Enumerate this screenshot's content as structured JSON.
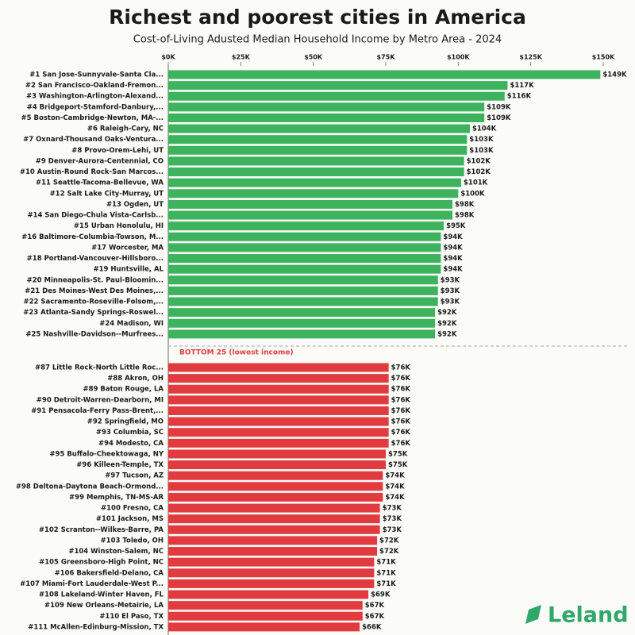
{
  "chart_data": {
    "type": "bar",
    "title": "Richest and poorest cities in America",
    "subtitle": "Cost-of-Living Adusted Median Household Income by Metro Area - 2024",
    "xlim": [
      0,
      150
    ],
    "xticks": [
      {
        "value": 0,
        "label": "$0K"
      },
      {
        "value": 25,
        "label": "$25K"
      },
      {
        "value": 50,
        "label": "$50K"
      },
      {
        "value": 75,
        "label": "$75K"
      },
      {
        "value": 100,
        "label": "$100K"
      },
      {
        "value": 125,
        "label": "$125K"
      },
      {
        "value": 150,
        "label": "$150K"
      }
    ],
    "groups": [
      {
        "color": "#3cb35c",
        "categories": [
          "#1 San Jose-Sunnyvale-Santa Cla...",
          "#2 San Francisco-Oakland-Fremon...",
          "#3 Washington-Arlington-Alexand...",
          "#4 Bridgeport-Stamford-Danbury,...",
          "#5 Boston-Cambridge-Newton, MA-...",
          "#6 Raleigh-Cary, NC",
          "#7 Oxnard-Thousand Oaks-Ventura...",
          "#8 Provo-Orem-Lehi, UT",
          "#9 Denver-Aurora-Centennial, CO",
          "#10 Austin-Round Rock-San Marcos...",
          "#11 Seattle-Tacoma-Bellevue, WA",
          "#12 Salt Lake City-Murray, UT",
          "#13 Ogden, UT",
          "#14 San Diego-Chula Vista-Carlsb...",
          "#15 Urban Honolulu, HI",
          "#16 Baltimore-Columbia-Towson, M...",
          "#17 Worcester, MA",
          "#18 Portland-Vancouver-Hillsboro...",
          "#19 Huntsville, AL",
          "#20 Minneapolis-St. Paul-Bloomin...",
          "#21 Des Moines-West Des Moines,...",
          "#22 Sacramento-Roseville-Folsom,...",
          "#23 Atlanta-Sandy Springs-Roswel...",
          "#24 Madison, WI",
          "#25 Nashville-Davidson--Murfrees..."
        ],
        "values": [
          149,
          117,
          116,
          109,
          109,
          104,
          103,
          103,
          102,
          102,
          101,
          100,
          98,
          98,
          95,
          94,
          94,
          94,
          94,
          93,
          93,
          93,
          92,
          92,
          92
        ],
        "value_labels": [
          "$149K",
          "$117K",
          "$116K",
          "$109K",
          "$109K",
          "$104K",
          "$103K",
          "$103K",
          "$102K",
          "$102K",
          "$101K",
          "$100K",
          "$98K",
          "$98K",
          "$95K",
          "$94K",
          "$94K",
          "$94K",
          "$94K",
          "$93K",
          "$93K",
          "$93K",
          "$92K",
          "$92K",
          "$92K"
        ]
      },
      {
        "name": "BOTTOM 25 (lowest income)",
        "color": "#e23b3f",
        "categories": [
          "#87 Little Rock-North Little Roc...",
          "#88 Akron, OH",
          "#89 Baton Rouge, LA",
          "#90 Detroit-Warren-Dearborn, MI",
          "#91 Pensacola-Ferry Pass-Brent,...",
          "#92 Springfield, MO",
          "#93 Columbia, SC",
          "#94 Modesto, CA",
          "#95 Buffalo-Cheektowaga, NY",
          "#96 Killeen-Temple, TX",
          "#97 Tucson, AZ",
          "#98 Deltona-Daytona Beach-Ormond...",
          "#99 Memphis, TN-MS-AR",
          "#100 Fresno, CA",
          "#101 Jackson, MS",
          "#102 Scranton--Wilkes-Barre, PA",
          "#103 Toledo, OH",
          "#104 Winston-Salem, NC",
          "#105 Greensboro-High Point, NC",
          "#106 Bakersfield-Delano, CA",
          "#107 Miami-Fort Lauderdale-West P...",
          "#108 Lakeland-Winter Haven, FL",
          "#109 New Orleans-Metairie, LA",
          "#110 El Paso, TX",
          "#111 McAllen-Edinburg-Mission, TX"
        ],
        "values": [
          76,
          76,
          76,
          76,
          76,
          76,
          76,
          76,
          75,
          75,
          74,
          74,
          74,
          73,
          73,
          73,
          72,
          72,
          71,
          71,
          71,
          69,
          67,
          67,
          66
        ],
        "value_labels": [
          "$76K",
          "$76K",
          "$76K",
          "$76K",
          "$76K",
          "$76K",
          "$76K",
          "$76K",
          "$75K",
          "$75K",
          "$74K",
          "$74K",
          "$74K",
          "$73K",
          "$73K",
          "$73K",
          "$72K",
          "$72K",
          "$71K",
          "$71K",
          "$71K",
          "$69K",
          "$67K",
          "$67K",
          "$66K"
        ]
      }
    ]
  },
  "brand": "Leland"
}
